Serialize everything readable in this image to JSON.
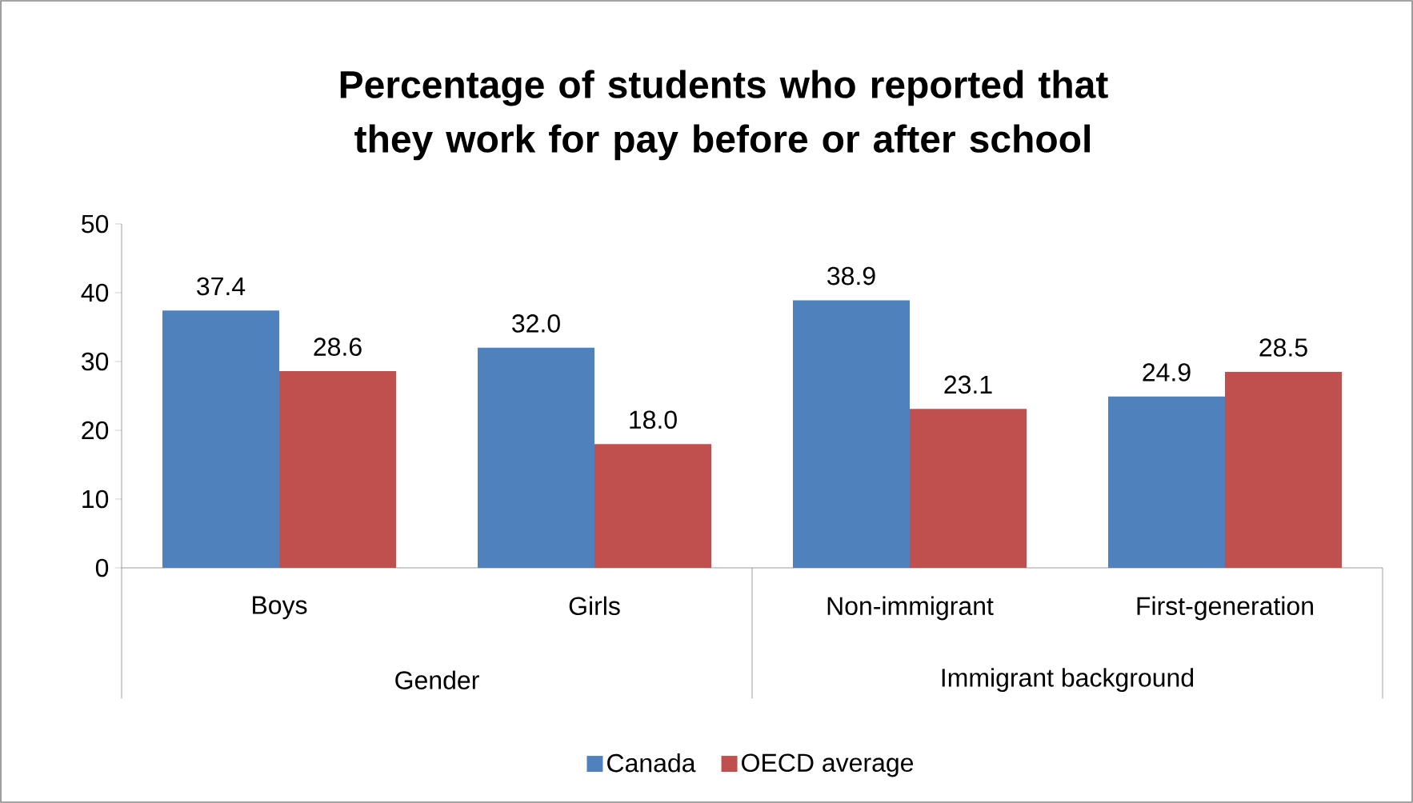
{
  "chart_data": {
    "type": "bar",
    "title": "Percentage of students who reported that they work for pay before or after school",
    "categories": [
      "Boys",
      "Girls",
      "Non-immigrant",
      "First-generation"
    ],
    "series": [
      {
        "name": "Canada",
        "color": "#4f81bd",
        "values": [
          37.4,
          32.0,
          38.9,
          24.9
        ],
        "value_labels": [
          "37.4",
          "32.0",
          "38.9",
          "24.9"
        ]
      },
      {
        "name": "OECD average",
        "color": "#c0504d",
        "values": [
          28.6,
          18.0,
          23.1,
          28.5
        ],
        "value_labels": [
          "28.6",
          "18.0",
          "23.1",
          "28.5"
        ]
      }
    ],
    "annotations": [
      "Gender",
      "Immigrant background"
    ],
    "ylim": [
      0,
      50
    ],
    "yticks": [
      0,
      10,
      20,
      30,
      40,
      50
    ],
    "legend": "bottom",
    "grid": false
  }
}
